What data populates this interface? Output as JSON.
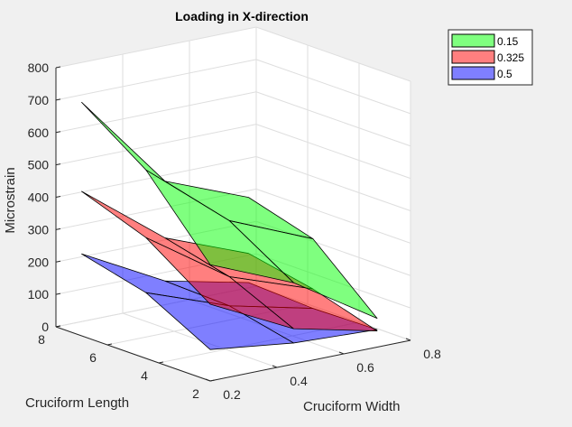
{
  "chart_data": {
    "type": "surface3d",
    "title": "Loading in X-direction",
    "xlabel": "Cruciform Width",
    "ylabel": "Cruciform Length",
    "zlabel": "Microstrain",
    "xlim": [
      0.2,
      0.8
    ],
    "ylim": [
      2,
      8
    ],
    "zlim": [
      0,
      800
    ],
    "xticks": [
      "0.2",
      "0.4",
      "0.6",
      "0.8"
    ],
    "yticks": [
      "2",
      "4",
      "6",
      "8"
    ],
    "zticks": [
      "0",
      "100",
      "200",
      "300",
      "400",
      "500",
      "600",
      "700",
      "800"
    ],
    "grid": true,
    "legend_position": "top-right",
    "x": [
      0.2,
      0.45,
      0.7
    ],
    "y": [
      2,
      4.5,
      7
    ],
    "series": [
      {
        "name": "0.5",
        "color": "#0000ff",
        "z": [
          [
            97,
            65,
            54
          ],
          [
            203,
            110,
            50
          ],
          [
            253,
            117,
            60
          ]
        ]
      },
      {
        "name": "0.325",
        "color": "#ff0000",
        "z": [
          [
            237,
            109,
            50
          ],
          [
            373,
            200,
            110
          ],
          [
            446,
            250,
            150
          ]
        ]
      },
      {
        "name": "0.15",
        "color": "#00ff00",
        "z": [
          [
            359,
            251,
            89
          ],
          [
            582,
            373,
            265
          ],
          [
            721,
            425,
            323
          ]
        ]
      }
    ],
    "legend_order": [
      "0.15",
      "0.325",
      "0.5"
    ]
  }
}
